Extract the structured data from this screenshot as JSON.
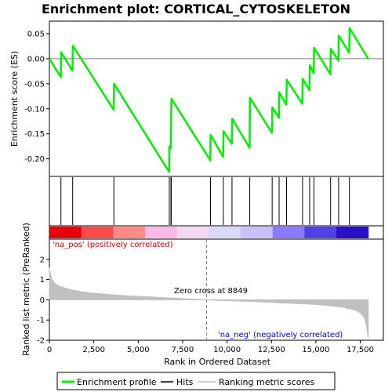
{
  "chart_data": {
    "type": "line",
    "title": "Enrichment plot: CORTICAL_CYTOSKELETON",
    "xlabel": "Rank in Ordered Dataset",
    "xlim": [
      0,
      18800
    ],
    "x_ticks": [
      0,
      2500,
      5000,
      7500,
      10000,
      12500,
      15000,
      17500
    ],
    "x_tick_labels": [
      "0",
      "2,500",
      "5,000",
      "7,500",
      "10,000",
      "12,500",
      "15,000",
      "17,500"
    ],
    "es_panel": {
      "ylabel": "Enrichment score (ES)",
      "ylim": [
        -0.235,
        0.075
      ],
      "y_ticks": [
        -0.2,
        -0.15,
        -0.1,
        -0.05,
        0.0,
        0.05
      ],
      "y_tick_labels": [
        "-0.20",
        "-0.15",
        "-0.10",
        "-0.05",
        "0.00",
        "0.05"
      ],
      "series": [
        {
          "name": "Enrichment profile",
          "color": "#00ee00",
          "x": [
            0,
            650,
            660,
            1300,
            1320,
            3620,
            3640,
            6740,
            6760,
            6830,
            6850,
            6870,
            9060,
            9080,
            9780,
            9800,
            10270,
            10290,
            11270,
            11290,
            12530,
            12550,
            12920,
            12940,
            13340,
            13360,
            14240,
            14260,
            14640,
            14660,
            14880,
            14900,
            15820,
            15840,
            16270,
            16290,
            16880,
            16900,
            17950
          ],
          "y": [
            0.0,
            -0.037,
            0.013,
            -0.024,
            0.026,
            -0.102,
            -0.05,
            -0.226,
            -0.175,
            -0.179,
            -0.13,
            -0.08,
            -0.203,
            -0.152,
            -0.196,
            -0.145,
            -0.17,
            -0.12,
            -0.178,
            -0.078,
            -0.148,
            -0.097,
            -0.118,
            -0.067,
            -0.092,
            -0.042,
            -0.09,
            -0.04,
            -0.063,
            -0.013,
            -0.029,
            0.022,
            -0.031,
            0.02,
            -0.004,
            0.046,
            0.012,
            0.061,
            0.0
          ]
        }
      ]
    },
    "hits": {
      "name": "Hits",
      "color": "#000000",
      "x": [
        650,
        1310,
        3630,
        6750,
        6840,
        6860,
        9070,
        9790,
        10280,
        11280,
        12540,
        12930,
        13350,
        14250,
        14650,
        14890,
        15830,
        16280,
        16890
      ]
    },
    "ranking_panel": {
      "ylabel": "Ranked list metric (PreRanked)",
      "ylim": [
        -2.0,
        3.0
      ],
      "y_ticks": [
        -2,
        -1,
        0,
        1,
        2
      ],
      "y_tick_labels": [
        "-2",
        "-1",
        "0",
        "1",
        "2"
      ],
      "series_name": "Ranking metric scores",
      "color": "#c0c0c0",
      "x": [
        0,
        50,
        150,
        300,
        500,
        800,
        1200,
        1800,
        2500,
        3500,
        4500,
        5500,
        6500,
        7500,
        8200,
        8849,
        9500,
        10500,
        11500,
        12500,
        13500,
        14500,
        15500,
        16000,
        16500,
        17000,
        17300,
        17500,
        17650,
        17750,
        17850,
        17950
      ],
      "y": [
        1.6,
        1.3,
        1.0,
        0.82,
        0.7,
        0.6,
        0.5,
        0.4,
        0.33,
        0.25,
        0.19,
        0.15,
        0.1,
        0.06,
        0.03,
        0.0,
        -0.03,
        -0.06,
        -0.09,
        -0.13,
        -0.17,
        -0.21,
        -0.27,
        -0.31,
        -0.37,
        -0.46,
        -0.55,
        -0.65,
        -0.78,
        -0.95,
        -1.3,
        -1.9
      ]
    },
    "zero_cross": {
      "x": 8849,
      "label": "Zero cross at 8849"
    },
    "annotations": {
      "pos": {
        "text": "'na_pos' (positively correlated)",
        "color": "#cc0000"
      },
      "neg": {
        "text": "'na_neg' (negatively correlated)",
        "color": "#0000cc"
      }
    },
    "legend": {
      "placement": "bottom",
      "items": [
        {
          "label": "Enrichment profile",
          "color": "#00ee00"
        },
        {
          "label": "Hits",
          "color": "#000000"
        },
        {
          "label": "Ranking metric scores",
          "color": "#c0c0c0"
        }
      ]
    },
    "heatmap_colors": [
      "#e8000a",
      "#ff4a4a",
      "#ff8a8a",
      "#ffb8e8",
      "#f4d8f4",
      "#d8d8f8",
      "#c8c0ff",
      "#8a7aff",
      "#5040e8",
      "#2a10c8"
    ]
  }
}
